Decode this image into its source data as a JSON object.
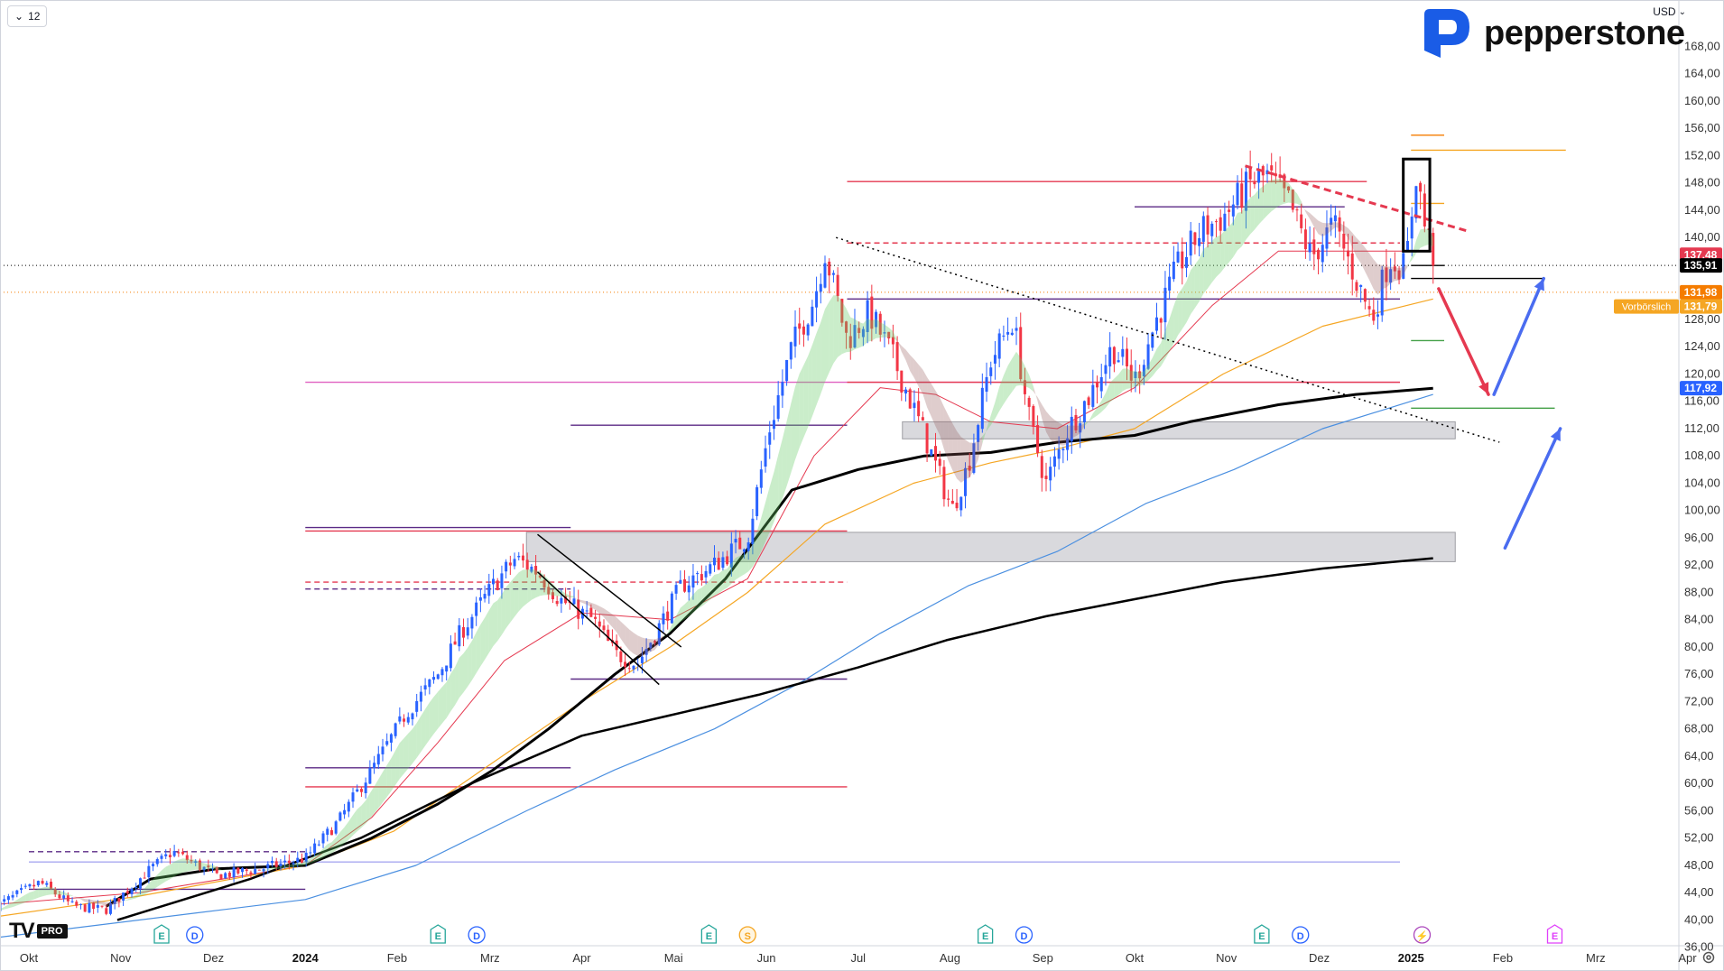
{
  "toolbar": {
    "interval_label": "12",
    "currency_label": "USD"
  },
  "logo": {
    "text": "pepperstone"
  },
  "tv_logo": {
    "text": "TV",
    "pro": "PRO"
  },
  "chart_data": {
    "type": "candlestick",
    "y_axis": {
      "range": [
        36,
        172
      ],
      "ticks": [
        36,
        40,
        44,
        48,
        52,
        56,
        60,
        64,
        68,
        72,
        76,
        80,
        84,
        88,
        92,
        96,
        100,
        104,
        108,
        112,
        116,
        120,
        124,
        128,
        132,
        136,
        140,
        144,
        148,
        152,
        156,
        160,
        164,
        168
      ],
      "tick_labels": [
        "36,00",
        "40,00",
        "44,00",
        "48,00",
        "52,00",
        "56,00",
        "60,00",
        "64,00",
        "68,00",
        "72,00",
        "76,00",
        "80,00",
        "84,00",
        "88,00",
        "92,00",
        "96,00",
        "100,00",
        "104,00",
        "108,00",
        "112,00",
        "116,00",
        "120,00",
        "124,00",
        "128,00",
        "132,00",
        "136,00",
        "140,00",
        "144,00",
        "148,00",
        "152,00",
        "156,00",
        "160,00",
        "164,00",
        "168,00"
      ]
    },
    "x_axis": {
      "labels": [
        {
          "label": "Okt",
          "x": 2023.75
        },
        {
          "label": "Nov",
          "x": 2023.833
        },
        {
          "label": "Dez",
          "x": 2023.917
        },
        {
          "label": "2024",
          "x": 2024.0,
          "bold": true
        },
        {
          "label": "Feb",
          "x": 2024.083
        },
        {
          "label": "Mrz",
          "x": 2024.167
        },
        {
          "label": "Apr",
          "x": 2024.25
        },
        {
          "label": "Mai",
          "x": 2024.333
        },
        {
          "label": "Jun",
          "x": 2024.417
        },
        {
          "label": "Jul",
          "x": 2024.5
        },
        {
          "label": "Aug",
          "x": 2024.583
        },
        {
          "label": "Sep",
          "x": 2024.667
        },
        {
          "label": "Okt",
          "x": 2024.75
        },
        {
          "label": "Nov",
          "x": 2024.833
        },
        {
          "label": "Dez",
          "x": 2024.917
        },
        {
          "label": "2025",
          "x": 2025.0,
          "bold": true
        },
        {
          "label": "Feb",
          "x": 2025.083
        },
        {
          "label": "Mrz",
          "x": 2025.167
        },
        {
          "label": "Apr",
          "x": 2025.25
        }
      ]
    },
    "price_path": [
      [
        2023.72,
        42.0
      ],
      [
        2023.76,
        45.5
      ],
      [
        2023.79,
        42.0
      ],
      [
        2023.82,
        41.5
      ],
      [
        2023.86,
        47.5
      ],
      [
        2023.88,
        50.0
      ],
      [
        2023.92,
        46.5
      ],
      [
        2023.96,
        47.5
      ],
      [
        2024.0,
        49.0
      ],
      [
        2024.03,
        54.5
      ],
      [
        2024.06,
        62.0
      ],
      [
        2024.09,
        70.0
      ],
      [
        2024.12,
        76.0
      ],
      [
        2024.14,
        82.0
      ],
      [
        2024.17,
        89.0
      ],
      [
        2024.19,
        93.0
      ],
      [
        2024.21,
        91.0
      ],
      [
        2024.23,
        87.0
      ],
      [
        2024.26,
        84.0
      ],
      [
        2024.28,
        79.0
      ],
      [
        2024.3,
        77.5
      ],
      [
        2024.32,
        83.0
      ],
      [
        2024.34,
        89.0
      ],
      [
        2024.37,
        92.0
      ],
      [
        2024.4,
        96.0
      ],
      [
        2024.42,
        112.0
      ],
      [
        2024.44,
        124.0
      ],
      [
        2024.46,
        131.0
      ],
      [
        2024.47,
        138.0
      ],
      [
        2024.49,
        125.0
      ],
      [
        2024.51,
        129.0
      ],
      [
        2024.53,
        123.0
      ],
      [
        2024.56,
        111.0
      ],
      [
        2024.585,
        100.0
      ],
      [
        2024.6,
        107.0
      ],
      [
        2024.62,
        122.0
      ],
      [
        2024.64,
        128.0
      ],
      [
        2024.655,
        113.0
      ],
      [
        2024.67,
        104.0
      ],
      [
        2024.69,
        112.0
      ],
      [
        2024.71,
        117.0
      ],
      [
        2024.73,
        124.0
      ],
      [
        2024.75,
        119.0
      ],
      [
        2024.77,
        128.0
      ],
      [
        2024.79,
        136.0
      ],
      [
        2024.81,
        141.0
      ],
      [
        2024.83,
        143.0
      ],
      [
        2024.855,
        148.0
      ],
      [
        2024.87,
        149.0
      ],
      [
        2024.89,
        145.0
      ],
      [
        2024.91,
        137.0
      ],
      [
        2024.93,
        142.0
      ],
      [
        2024.95,
        134.0
      ],
      [
        2024.965,
        128.0
      ],
      [
        2024.98,
        137.0
      ],
      [
        2024.995,
        135.5
      ],
      [
        2025.005,
        150.0
      ],
      [
        2025.012,
        142.0
      ],
      [
        2025.02,
        137.48
      ]
    ],
    "moving_averages": [
      {
        "color": "#000000",
        "width": 3,
        "points": [
          [
            2023.82,
            42.0
          ],
          [
            2023.86,
            46.0
          ],
          [
            2023.92,
            47.5
          ],
          [
            2024.0,
            48.0
          ],
          [
            2024.06,
            52.0
          ],
          [
            2024.12,
            57.0
          ],
          [
            2024.17,
            62.0
          ],
          [
            2024.22,
            68.0
          ],
          [
            2024.28,
            76.0
          ],
          [
            2024.33,
            82.0
          ],
          [
            2024.38,
            90.0
          ],
          [
            2024.44,
            103.0
          ],
          [
            2024.5,
            106.0
          ],
          [
            2024.56,
            108.0
          ],
          [
            2024.62,
            108.5
          ],
          [
            2024.68,
            110.0
          ],
          [
            2024.75,
            111.0
          ],
          [
            2024.8,
            113.0
          ],
          [
            2024.88,
            115.5
          ],
          [
            2024.95,
            117.0
          ],
          [
            2025.02,
            117.9
          ]
        ]
      },
      {
        "color": "#000000",
        "width": 2.5,
        "points": [
          [
            2023.83,
            40.0
          ],
          [
            2023.95,
            46.0
          ],
          [
            2024.05,
            52.0
          ],
          [
            2024.15,
            60.0
          ],
          [
            2024.25,
            67.0
          ],
          [
            2024.33,
            70.0
          ],
          [
            2024.41,
            73.0
          ],
          [
            2024.5,
            77.0
          ],
          [
            2024.58,
            81.0
          ],
          [
            2024.67,
            84.5
          ],
          [
            2024.75,
            87.0
          ],
          [
            2024.83,
            89.5
          ],
          [
            2024.92,
            91.5
          ],
          [
            2025.02,
            93.0
          ]
        ]
      },
      {
        "color": "#4a8fe0",
        "width": 1.2,
        "points": [
          [
            2023.7,
            37.0
          ],
          [
            2023.9,
            41.0
          ],
          [
            2024.0,
            43.0
          ],
          [
            2024.1,
            48.0
          ],
          [
            2024.2,
            56.0
          ],
          [
            2024.28,
            62.0
          ],
          [
            2024.37,
            68.0
          ],
          [
            2024.45,
            75.0
          ],
          [
            2024.52,
            82.0
          ],
          [
            2024.6,
            89.0
          ],
          [
            2024.68,
            94.0
          ],
          [
            2024.76,
            101.0
          ],
          [
            2024.84,
            106.0
          ],
          [
            2024.92,
            112.0
          ],
          [
            2025.02,
            117.0
          ]
        ]
      },
      {
        "color": "#f5a623",
        "width": 1.2,
        "points": [
          [
            2023.7,
            40.0
          ],
          [
            2023.85,
            43.5
          ],
          [
            2024.0,
            48.0
          ],
          [
            2024.08,
            53.0
          ],
          [
            2024.16,
            62.0
          ],
          [
            2024.25,
            72.0
          ],
          [
            2024.33,
            80.0
          ],
          [
            2024.4,
            88.0
          ],
          [
            2024.47,
            98.0
          ],
          [
            2024.55,
            104.0
          ],
          [
            2024.62,
            107.0
          ],
          [
            2024.68,
            109.0
          ],
          [
            2024.75,
            112.0
          ],
          [
            2024.83,
            120.0
          ],
          [
            2024.92,
            127.0
          ],
          [
            2025.02,
            131.0
          ]
        ]
      },
      {
        "color": "#e53950",
        "width": 1,
        "points": [
          [
            2023.7,
            42.0
          ],
          [
            2023.85,
            44.0
          ],
          [
            2024.0,
            48.0
          ],
          [
            2024.06,
            55.0
          ],
          [
            2024.12,
            66.0
          ],
          [
            2024.18,
            78.0
          ],
          [
            2024.25,
            85.0
          ],
          [
            2024.33,
            84.0
          ],
          [
            2024.4,
            90.0
          ],
          [
            2024.46,
            108.0
          ],
          [
            2024.52,
            118.0
          ],
          [
            2024.57,
            117.0
          ],
          [
            2024.62,
            113.0
          ],
          [
            2024.68,
            112.0
          ],
          [
            2024.75,
            118.0
          ],
          [
            2024.82,
            130.0
          ],
          [
            2024.88,
            138.0
          ],
          [
            2024.95,
            138.0
          ],
          [
            2025.02,
            138.0
          ]
        ]
      }
    ],
    "horizontal_levels": [
      {
        "y": 148.2,
        "x1": 2024.49,
        "x2": 2024.96,
        "color": "#e53950"
      },
      {
        "y": 144.5,
        "x1": 2024.75,
        "x2": 2024.94,
        "color": "#5b2a86"
      },
      {
        "y": 139.2,
        "x1": 2024.49,
        "x2": 2024.99,
        "color": "#e53950",
        "dash": "6,4"
      },
      {
        "y": 131.0,
        "x1": 2024.49,
        "x2": 2024.99,
        "color": "#5b2a86"
      },
      {
        "y": 118.8,
        "x1": 2024.0,
        "x2": 2024.99,
        "color": "#e060c0"
      },
      {
        "y": 118.8,
        "x1": 2024.49,
        "x2": 2024.99,
        "color": "#e53950"
      },
      {
        "y": 112.5,
        "x1": 2024.24,
        "x2": 2024.49,
        "color": "#5b2a86"
      },
      {
        "y": 97.5,
        "x1": 2024.0,
        "x2": 2024.24,
        "color": "#5b2a86"
      },
      {
        "y": 97.0,
        "x1": 2024.0,
        "x2": 2024.49,
        "color": "#e53950"
      },
      {
        "y": 89.5,
        "x1": 2024.0,
        "x2": 2024.49,
        "color": "#e53950",
        "dash": "6,4"
      },
      {
        "y": 88.5,
        "x1": 2024.0,
        "x2": 2024.24,
        "color": "#5b2a86",
        "dash": "6,4"
      },
      {
        "y": 75.3,
        "x1": 2024.24,
        "x2": 2024.49,
        "color": "#5b2a86"
      },
      {
        "y": 62.3,
        "x1": 2024.0,
        "x2": 2024.24,
        "color": "#5b2a86"
      },
      {
        "y": 59.5,
        "x1": 2024.0,
        "x2": 2024.49,
        "color": "#e53950"
      },
      {
        "y": 50.0,
        "x1": 2023.75,
        "x2": 2024.0,
        "color": "#5b2a86",
        "dash": "6,4"
      },
      {
        "y": 48.5,
        "x1": 2023.75,
        "x2": 2024.99,
        "color": "#a8a8f0"
      },
      {
        "y": 44.5,
        "x1": 2023.75,
        "x2": 2024.0,
        "color": "#5b2a86"
      },
      {
        "y": 135.9,
        "x1": 2025.0,
        "x2": 2025.03,
        "color": "#000000"
      },
      {
        "y": 134.0,
        "x1": 2025.0,
        "x2": 2025.12,
        "color": "#000000"
      },
      {
        "y": 155.0,
        "x1": 2025.0,
        "x2": 2025.03,
        "color": "#f57c00"
      },
      {
        "y": 152.8,
        "x1": 2025.0,
        "x2": 2025.14,
        "color": "#f5a623"
      },
      {
        "y": 145.0,
        "x1": 2025.0,
        "x2": 2025.03,
        "color": "#f5a623"
      },
      {
        "y": 124.9,
        "x1": 2025.0,
        "x2": 2025.03,
        "color": "#43a047"
      },
      {
        "y": 115.0,
        "x1": 2025.0,
        "x2": 2025.13,
        "color": "#43a047"
      }
    ],
    "zones": [
      {
        "y1": 110.5,
        "y2": 113.0,
        "x1": 2024.54,
        "x2": 2025.04
      },
      {
        "y1": 92.5,
        "y2": 96.8,
        "x1": 2024.2,
        "x2": 2025.04
      }
    ],
    "trendlines": [
      {
        "x1": 2024.48,
        "y1": 140.0,
        "x2": 2025.08,
        "y2": 110.0,
        "color": "#000000",
        "dash": "2,4",
        "width": 1.5
      },
      {
        "x1": 2024.85,
        "y1": 150.5,
        "x2": 2025.05,
        "y2": 141.0,
        "color": "#e53950",
        "dash": "8,5",
        "width": 3
      },
      {
        "x1": 2024.21,
        "y1": 96.5,
        "x2": 2024.34,
        "y2": 80.0,
        "color": "#000000",
        "width": 1.5
      },
      {
        "x1": 2024.21,
        "y1": 91.0,
        "x2": 2024.32,
        "y2": 74.5,
        "color": "#000000",
        "width": 1.5
      }
    ],
    "arrows": [
      {
        "x1": 2025.025,
        "y1": 132.5,
        "x2": 2025.07,
        "y2": 117.0,
        "color": "#e53950"
      },
      {
        "x1": 2025.075,
        "y1": 117.0,
        "x2": 2025.12,
        "y2": 134.0,
        "color": "#4a6cf0"
      },
      {
        "x1": 2025.085,
        "y1": 94.5,
        "x2": 2025.135,
        "y2": 112.0,
        "color": "#4a6cf0"
      }
    ],
    "highlight_box": {
      "x1": 2024.993,
      "y1": 151.5,
      "x2": 2025.017,
      "y2": 138.0
    },
    "event_markers": [
      {
        "x": 2023.87,
        "label": "E",
        "kind": "earnings"
      },
      {
        "x": 2023.9,
        "label": "D",
        "kind": "dividend"
      },
      {
        "x": 2024.12,
        "label": "E",
        "kind": "earnings"
      },
      {
        "x": 2024.155,
        "label": "D",
        "kind": "dividend"
      },
      {
        "x": 2024.365,
        "label": "E",
        "kind": "earnings"
      },
      {
        "x": 2024.4,
        "label": "S",
        "kind": "split"
      },
      {
        "x": 2024.615,
        "label": "E",
        "kind": "earnings"
      },
      {
        "x": 2024.65,
        "label": "D",
        "kind": "dividend"
      },
      {
        "x": 2024.865,
        "label": "E",
        "kind": "earnings"
      },
      {
        "x": 2024.9,
        "label": "D",
        "kind": "dividend"
      },
      {
        "x": 2025.01,
        "label": "⚡",
        "kind": "event"
      },
      {
        "x": 2025.13,
        "label": "E",
        "kind": "future"
      }
    ],
    "price_badges": [
      {
        "value": 137.48,
        "label": "137,48",
        "bg": "#e53950",
        "text": "#ffffff"
      },
      {
        "value": 135.91,
        "label": "135,91",
        "bg": "#000000",
        "text": "#ffffff"
      },
      {
        "value": 131.98,
        "label": "131,98",
        "bg": "#f57c00",
        "text": "#ffffff"
      },
      {
        "value": 129.9,
        "label": "131,79",
        "bg": "#f5a623",
        "text": "#ffffff",
        "prefix": "Vorbörslich"
      },
      {
        "value": 117.92,
        "label": "117,92",
        "bg": "#2962ff",
        "text": "#ffffff"
      }
    ],
    "reference_lines": [
      {
        "value": 135.91,
        "color": "#000000",
        "dash": "1,3"
      },
      {
        "value": 131.98,
        "color": "#f57c00",
        "dash": "1,3"
      }
    ]
  }
}
